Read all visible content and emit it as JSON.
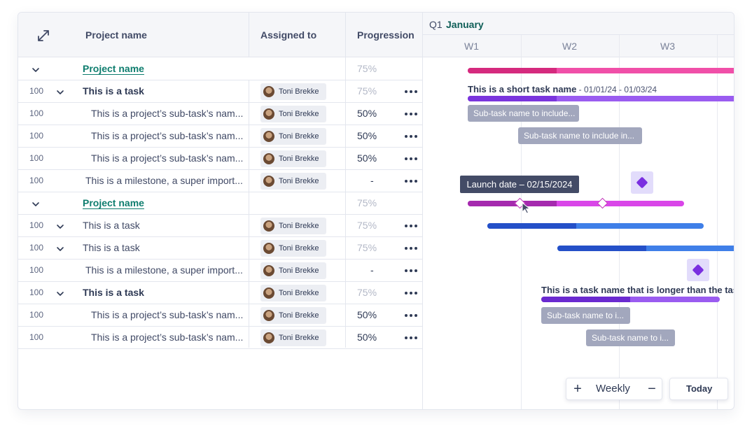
{
  "table": {
    "headers": {
      "project_name": "Project name",
      "assigned_to": "Assigned to",
      "progression": "Progression"
    },
    "rows": [
      {
        "type": "project",
        "name": "Project name",
        "progress": "75%"
      },
      {
        "type": "task",
        "num": "100",
        "name": "This is a task",
        "assignee": "Toni Brekke",
        "progress": "75%"
      },
      {
        "type": "subtask",
        "num": "100",
        "name": "This is a project’s sub-task’s nam...",
        "assignee": "Toni Brekke",
        "progress": "50%"
      },
      {
        "type": "subtask",
        "num": "100",
        "name": "This is a project’s sub-task’s nam...",
        "assignee": "Toni Brekke",
        "progress": "50%"
      },
      {
        "type": "subtask",
        "num": "100",
        "name": "This is a project’s sub-task’s nam...",
        "assignee": "Toni Brekke",
        "progress": "50%"
      },
      {
        "type": "milestone",
        "num": "100",
        "name": "This is a milestone, a super import...",
        "assignee": "Toni Brekke",
        "progress": "-"
      },
      {
        "type": "project",
        "name": "Project name",
        "progress": "75%"
      },
      {
        "type": "task",
        "num": "100",
        "name": "This is a task",
        "assignee": "Toni Brekke",
        "progress": "75%"
      },
      {
        "type": "task",
        "num": "100",
        "name": "This is a task",
        "assignee": "Toni Brekke",
        "progress": "75%"
      },
      {
        "type": "milestone",
        "num": "100",
        "name": "This is a milestone, a super import...",
        "assignee": "Toni Brekke",
        "progress": "-"
      },
      {
        "type": "task",
        "num": "100",
        "name": "This is a task",
        "assignee": "Toni Brekke",
        "progress": "75%"
      },
      {
        "type": "subtask",
        "num": "100",
        "name": "This is a project’s sub-task’s nam...",
        "assignee": "Toni Brekke",
        "progress": "50%"
      },
      {
        "type": "subtask",
        "num": "100",
        "name": "This is a project’s sub-task’s nam...",
        "assignee": "Toni Brekke",
        "progress": "50%"
      }
    ]
  },
  "gantt": {
    "quarter": "Q1",
    "month": "January",
    "weeks": [
      "W1",
      "W2",
      "W3"
    ],
    "task_label_1": {
      "name": "This is a short task name",
      "dates": " - 01/01/24 - 01/03/24"
    },
    "task_label_2": {
      "name": "This is a task name that is longer than the task"
    },
    "subtasks": [
      "Sub-task name to include...",
      "Sub-task name to include in...",
      "Sub-task name to i...",
      "Sub-task name to i..."
    ],
    "tooltip": "Launch date – 02/15/2024",
    "colors": {
      "pink": "#e84fa6",
      "purple": "#8b4fe6",
      "magenta": "#d946e8",
      "blue": "#3f7fe8",
      "violet": "#7c4de0"
    }
  },
  "controls": {
    "zoom_in": "+",
    "scale": "Weekly",
    "zoom_out": "−",
    "today": "Today"
  }
}
